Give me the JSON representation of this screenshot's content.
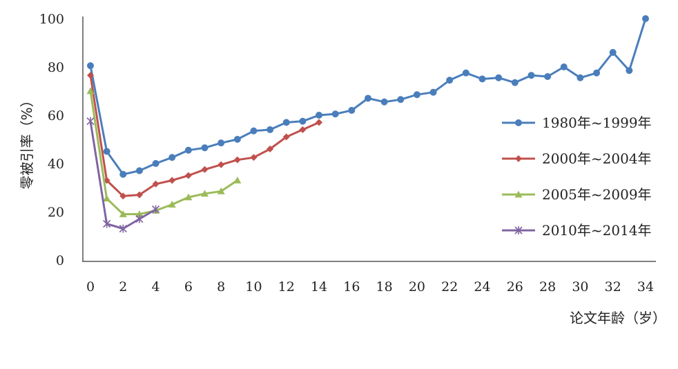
{
  "chart_data": {
    "type": "line",
    "xlabel": "论文年龄（岁）",
    "ylabel": "零被引率（%）",
    "xlim": [
      0,
      34
    ],
    "ylim": [
      0,
      100
    ],
    "x_ticks": [
      "0",
      "2",
      "4",
      "6",
      "8",
      "10",
      "12",
      "14",
      "16",
      "18",
      "20",
      "22",
      "24",
      "26",
      "28",
      "30",
      "32",
      "34"
    ],
    "y_ticks": [
      "0",
      "20",
      "40",
      "60",
      "80",
      "100"
    ],
    "grid": false,
    "legend_position": "right",
    "series": [
      {
        "name": "1980年~1999年",
        "color": "#4a7ebb",
        "marker": "circle",
        "x": [
          0,
          1,
          2,
          3,
          4,
          5,
          6,
          7,
          8,
          9,
          10,
          11,
          12,
          13,
          14,
          15,
          16,
          17,
          18,
          19,
          20,
          21,
          22,
          23,
          24,
          25,
          26,
          27,
          28,
          29,
          30,
          31,
          32,
          33,
          34
        ],
        "y": [
          80.5,
          45,
          35.5,
          37,
          40,
          42.5,
          45.5,
          46.5,
          48.5,
          50,
          53.5,
          54,
          57,
          57.5,
          60,
          60.5,
          62,
          67,
          65.5,
          66.5,
          68.5,
          69.5,
          74.5,
          77.5,
          75,
          75.5,
          73.5,
          76.5,
          76,
          80,
          75.5,
          77.5,
          86,
          78.5,
          100
        ]
      },
      {
        "name": "2000年~2004年",
        "color": "#c0504d",
        "marker": "diamond",
        "x": [
          0,
          1,
          2,
          3,
          4,
          5,
          6,
          7,
          8,
          9,
          10,
          11,
          12,
          13,
          14
        ],
        "y": [
          76.5,
          33,
          26.5,
          27,
          31.5,
          33,
          35,
          37.5,
          39.5,
          41.5,
          42.5,
          46,
          51,
          54,
          57
        ]
      },
      {
        "name": "2005年~2009年",
        "color": "#9bbb59",
        "marker": "triangle",
        "x": [
          0,
          1,
          2,
          3,
          4,
          5,
          6,
          7,
          8,
          9
        ],
        "y": [
          70,
          25.5,
          19,
          19,
          20.5,
          23,
          26,
          27.5,
          28.5,
          33
        ]
      },
      {
        "name": "2010年~2014年",
        "color": "#8064a2",
        "marker": "star",
        "x": [
          0,
          1,
          2,
          3,
          4
        ],
        "y": [
          57.5,
          15,
          13,
          17,
          21
        ]
      }
    ]
  }
}
